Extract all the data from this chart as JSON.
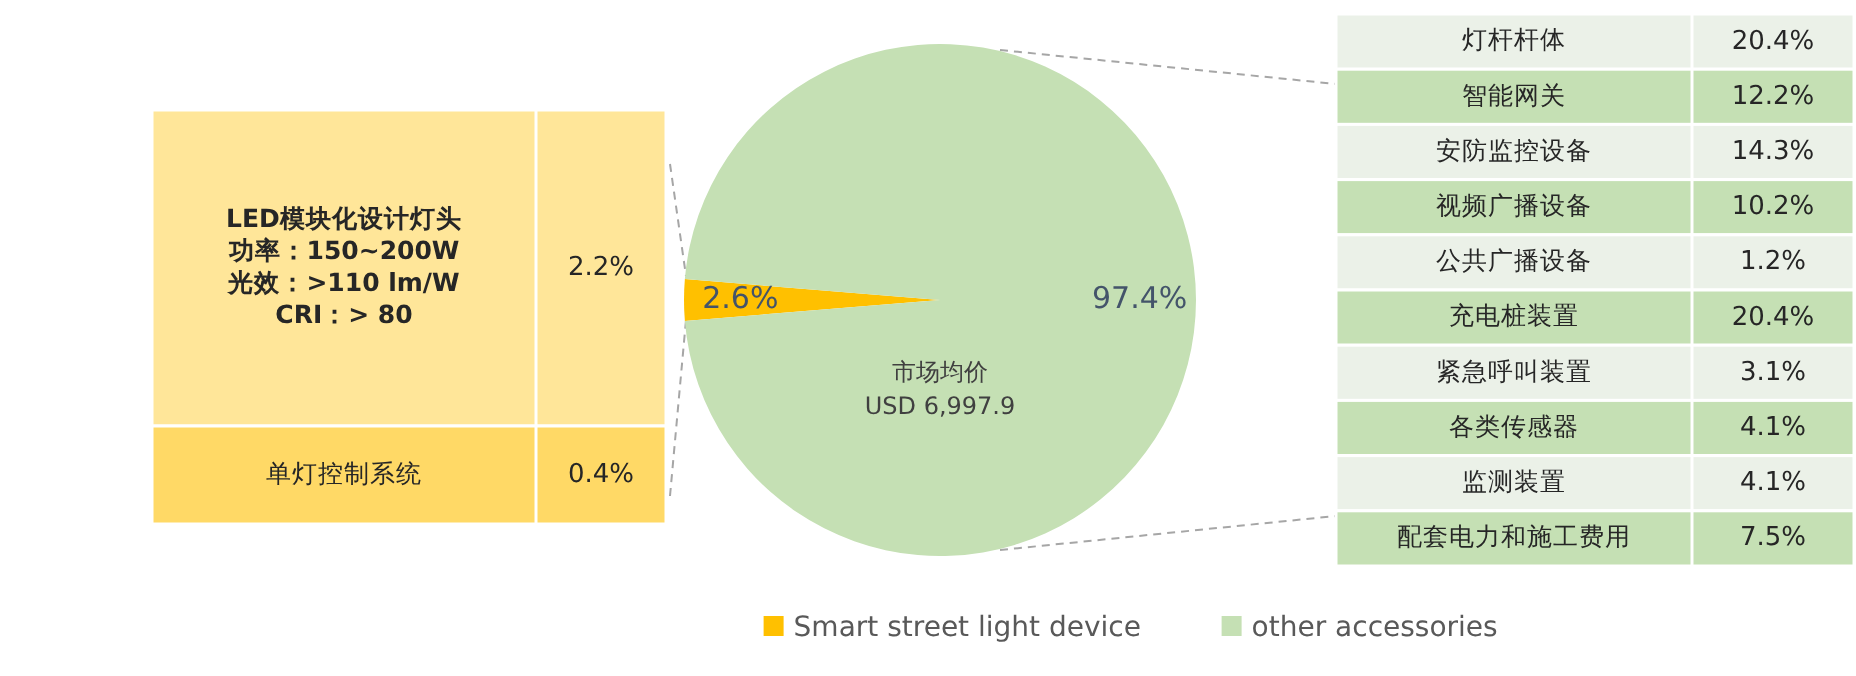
{
  "chart_data": [
    {
      "type": "pie",
      "categories": [
        "Smart street light device",
        "other accessories"
      ],
      "values": [
        2.6,
        97.4
      ],
      "value_labels": [
        "2.6%",
        "97.4%"
      ],
      "colors": [
        "#ffc000",
        "#c5e0b4"
      ],
      "legend": "bottom",
      "annotations": [
        "市场均价\nUSD 6,997.9"
      ]
    },
    {
      "type": "other",
      "categories": [
        "LED模块化设计灯头",
        "单灯控制系统"
      ],
      "annotations": [
        "功率：150~200W",
        "光效：>110 lm/W",
        "CRI：> 80"
      ],
      "value_labels": [
        "2.2%",
        "0.4%"
      ],
      "colors": [
        "#ffe699",
        "#ffd966"
      ]
    },
    {
      "type": "other",
      "categories": [
        "灯杆杆体",
        "智能网关",
        "安防监控设备",
        "视频广播设备",
        "公共广播设备",
        "充电桩装置",
        "紧急呼叫装置",
        "各类传感器",
        "监测装置",
        "配套电力和施工费用"
      ],
      "value_labels": [
        "20.4%",
        "12.2%",
        "14.3%",
        "10.2%",
        "1.2%",
        "20.4%",
        "3.1%",
        "4.1%",
        "4.1%",
        "7.5%"
      ],
      "colors": [
        "#ebf1e8",
        "#c5e0b4",
        "#ebf1e8",
        "#c5e0b4",
        "#ebf1e8",
        "#c5e0b4",
        "#ebf1e8",
        "#c5e0b4",
        "#ebf1e8",
        "#c5e0b4"
      ]
    }
  ]
}
